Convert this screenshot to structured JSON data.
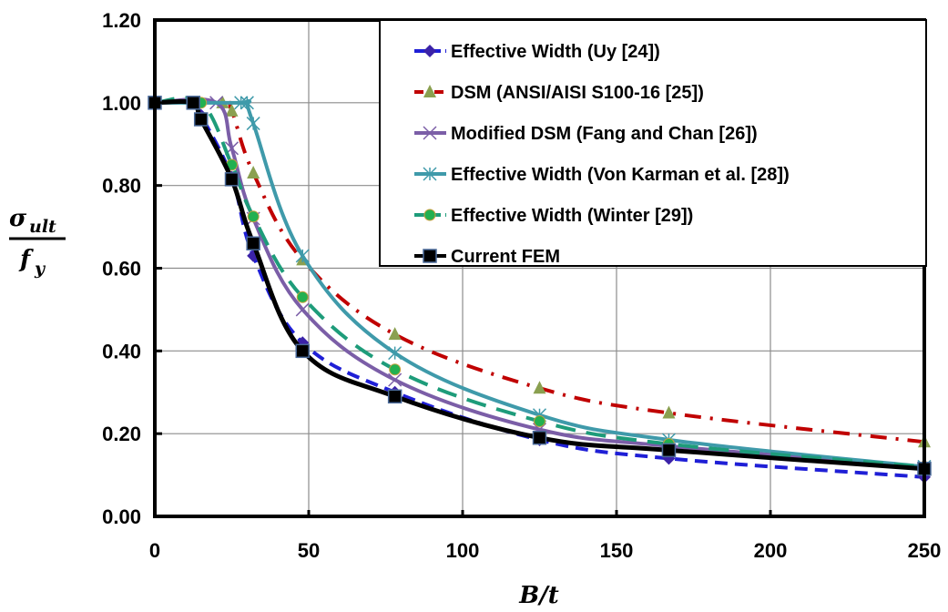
{
  "chart_data": {
    "type": "line",
    "title": "",
    "xlabel": "B/t",
    "ylabel_numerator": "σ_ult",
    "ylabel_denominator": "f_y",
    "xlim": [
      0,
      250
    ],
    "ylim": [
      0,
      1.2
    ],
    "xticks": [
      "0",
      "50",
      "100",
      "150",
      "200",
      "250"
    ],
    "xtick_values": [
      0,
      50,
      100,
      150,
      200,
      250
    ],
    "yticks": [
      "0.00",
      "0.20",
      "0.40",
      "0.60",
      "0.80",
      "1.00",
      "1.20"
    ],
    "ytick_values": [
      0,
      0.2,
      0.4,
      0.6,
      0.8,
      1.0,
      1.2
    ],
    "grid": true,
    "legend_position": "top-right",
    "series": [
      {
        "name": "Effective Width (Uy [24])",
        "color": "#1f1fd6",
        "marker_color": "#3b22a8",
        "dash": "dash",
        "marker": "diamond",
        "x": [
          0,
          12.5,
          15,
          25,
          32,
          48,
          78,
          125,
          167,
          250
        ],
        "y": [
          1.0,
          1.0,
          0.97,
          0.82,
          0.63,
          0.42,
          0.3,
          0.185,
          0.14,
          0.095
        ]
      },
      {
        "name": "DSM (ANSI/AISI S100-16 [25])",
        "color": "#c00000",
        "marker_color": "#8aa050",
        "dash": "dashdot",
        "marker": "triangle",
        "x": [
          0,
          22,
          25,
          32,
          48,
          78,
          125,
          167,
          250
        ],
        "y": [
          1.0,
          1.0,
          0.98,
          0.83,
          0.62,
          0.44,
          0.31,
          0.25,
          0.18
        ]
      },
      {
        "name": "Modified DSM (Fang and Chan [26])",
        "color": "#7b5ea7",
        "marker_color": "#7b5ea7",
        "dash": "solid",
        "marker": "x",
        "x": [
          0,
          20,
          25,
          32,
          48,
          78,
          125,
          167,
          250
        ],
        "y": [
          1.0,
          1.0,
          0.89,
          0.72,
          0.5,
          0.33,
          0.21,
          0.17,
          0.12
        ]
      },
      {
        "name": "Effective Width (Von Karman et al. [28])",
        "color": "#3f9aaa",
        "marker_color": "#3f9aaa",
        "dash": "solid",
        "marker": "star",
        "x": [
          0,
          28,
          30,
          32,
          48,
          78,
          125,
          167,
          250
        ],
        "y": [
          1.0,
          1.0,
          1.0,
          0.95,
          0.63,
          0.395,
          0.245,
          0.185,
          0.12
        ]
      },
      {
        "name": "Effective Width (Winter [29])",
        "color": "#1e9c7a",
        "marker_color": "#22b050",
        "dash": "longdash",
        "marker": "circle",
        "x": [
          0,
          15,
          25,
          32,
          48,
          78,
          125,
          167,
          250
        ],
        "y": [
          1.0,
          1.0,
          0.85,
          0.725,
          0.53,
          0.355,
          0.23,
          0.175,
          0.12
        ]
      },
      {
        "name": "Current FEM",
        "color": "#000000",
        "marker_color": "#000000",
        "dash": "solid",
        "marker": "square",
        "x": [
          0,
          12.5,
          15,
          25,
          32,
          48,
          78,
          125,
          167,
          250
        ],
        "y": [
          1.0,
          1.0,
          0.96,
          0.815,
          0.66,
          0.4,
          0.29,
          0.19,
          0.16,
          0.115
        ]
      }
    ]
  }
}
